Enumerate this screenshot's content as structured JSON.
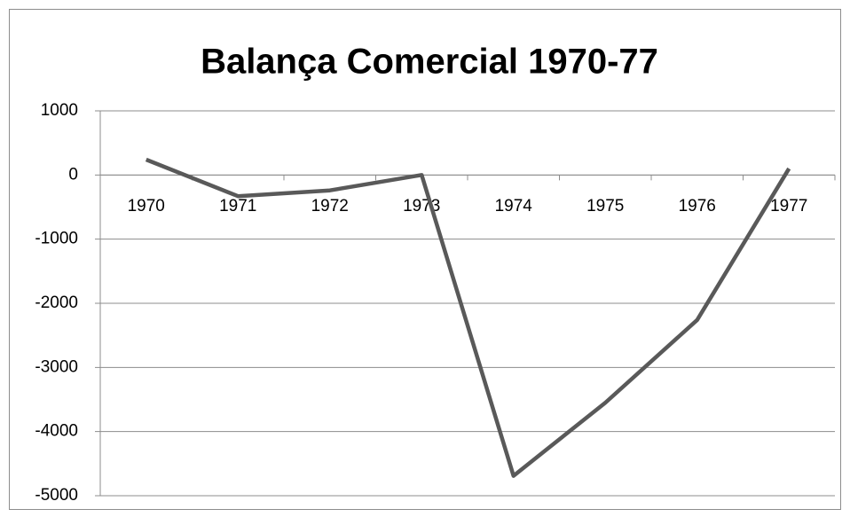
{
  "chart_data": {
    "type": "line",
    "title": "Balança Comercial 1970-77",
    "categories": [
      "1970",
      "1971",
      "1972",
      "1973",
      "1974",
      "1975",
      "1976",
      "1977"
    ],
    "series": [
      {
        "name": "Balança Comercial",
        "color": "#595959",
        "values": [
          240,
          -330,
          -240,
          0,
          -4690,
          -3550,
          -2260,
          100
        ]
      }
    ],
    "ylim": [
      -5000,
      1000
    ],
    "yticks": [
      -5000,
      -4000,
      -3000,
      -2000,
      -1000,
      0,
      1000
    ],
    "grid": true
  }
}
